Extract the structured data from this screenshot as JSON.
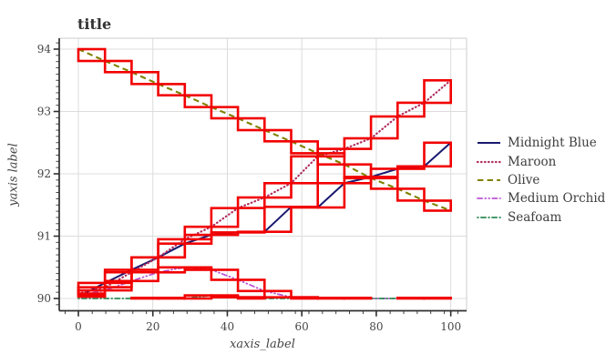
{
  "chart": {
    "title": "title",
    "xlabel": "xaxis_label",
    "ylabel": "yaxis label",
    "x_tick_labels": [
      "0",
      "20",
      "40",
      "60",
      "80",
      "100"
    ],
    "x_tick_values": [
      0,
      20,
      40,
      60,
      80,
      100
    ],
    "y_tick_labels": [
      "90",
      "91",
      "92",
      "93",
      "94"
    ],
    "y_tick_values": [
      90,
      91,
      92,
      93,
      94
    ],
    "legend": [
      {
        "label": "Midnight Blue"
      },
      {
        "label": "Maroon"
      },
      {
        "label": "Olive"
      },
      {
        "label": "Medium Orchid"
      },
      {
        "label": "Seafoam"
      }
    ],
    "colors": {
      "error_box": "#f20000",
      "grid": "#dcdcdc",
      "dark_spine": "#2f2f2f",
      "light_spine": "#d6d6d6",
      "tick_text": "#454545"
    }
  },
  "chart_data": {
    "type": "line",
    "title": "title",
    "xlabel": "xaxis_label",
    "ylabel": "yaxis label",
    "xlim": [
      -5.2,
      104.3
    ],
    "ylim": [
      89.76,
      94.18
    ],
    "grid": true,
    "legend_position": "right",
    "error_boxes": "red rectangle bounding each consecutive segment of every series",
    "x": [
      0,
      7.14,
      14.29,
      21.43,
      28.57,
      35.71,
      42.86,
      50,
      57.14,
      64.29,
      71.43,
      78.57,
      85.71,
      92.86,
      100
    ],
    "series": [
      {
        "name": "Midnight Blue",
        "color": "#191970",
        "style": "solid",
        "values": [
          90.03,
          90.25,
          90.46,
          90.66,
          90.88,
          91.02,
          91.06,
          91.07,
          91.47,
          91.46,
          91.85,
          91.95,
          92.08,
          92.12,
          92.5
        ]
      },
      {
        "name": "Maroon",
        "color": "#b03060",
        "style": "dotted",
        "values": [
          90.08,
          90.18,
          90.42,
          90.66,
          90.95,
          91.15,
          91.45,
          91.62,
          91.85,
          92.28,
          92.4,
          92.57,
          92.92,
          93.14,
          93.5
        ]
      },
      {
        "name": "Olive",
        "color": "#808000",
        "style": "dashed",
        "values": [
          94.0,
          93.81,
          93.63,
          93.44,
          93.26,
          93.07,
          92.89,
          92.7,
          92.52,
          92.33,
          92.15,
          91.93,
          91.76,
          91.57,
          91.41
        ]
      },
      {
        "name": "Medium Orchid",
        "color": "#ba55d3",
        "style": "dashdotdot",
        "values": [
          90.05,
          90.13,
          90.28,
          90.42,
          90.5,
          90.46,
          90.3,
          90.12,
          90.02,
          90.0,
          90.0,
          90.0,
          90.0,
          90.0,
          90.0
        ]
      },
      {
        "name": "Seafoam",
        "color": "#2e8b57",
        "style": "dashdot",
        "values": [
          90.0,
          90.0,
          90.0,
          90.01,
          90.0,
          90.05,
          90.02,
          90.0,
          90.0,
          90.0,
          90.01,
          90.0,
          90.0,
          90.01,
          90.0
        ]
      }
    ]
  }
}
